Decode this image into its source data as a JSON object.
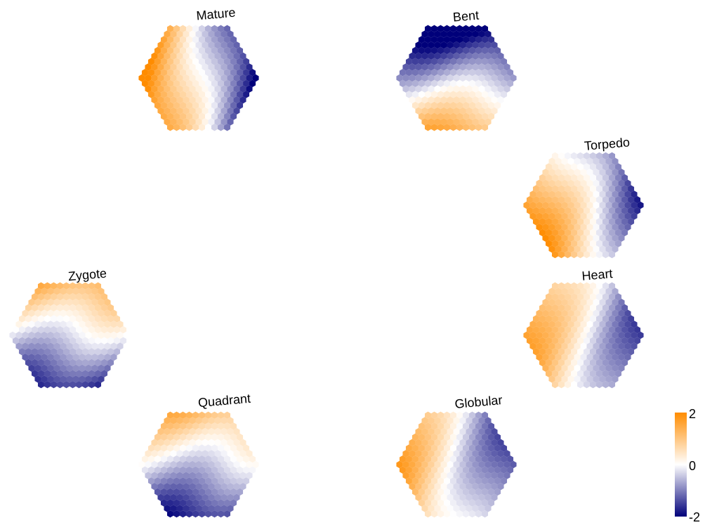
{
  "chart_data": {
    "type": "heatmap",
    "description_free": true,
    "color_scale": {
      "min": -2,
      "mid": 0,
      "max": 2,
      "ticks": [
        "2",
        "0",
        "-2"
      ],
      "colors": {
        "low": "#00007a",
        "mid": "#ffffff",
        "high": "#ff8c00"
      }
    },
    "panels": [
      {
        "name": "Mature",
        "pattern": [
          {
            "angle": 180,
            "strength": 1.6,
            "offset": 0.05
          }
        ]
      },
      {
        "name": "Bent",
        "pattern": [
          {
            "angle": 90,
            "strength": 1.4,
            "offset": -0.25
          }
        ]
      },
      {
        "name": "Torpedo",
        "pattern": [
          {
            "angle": 160,
            "strength": 1.2,
            "offset": 0.1
          }
        ]
      },
      {
        "name": "Heart",
        "pattern": [
          {
            "angle": 180,
            "strength": 1.0,
            "offset": 0.05
          }
        ]
      },
      {
        "name": "Globular",
        "pattern": [
          {
            "angle": 175,
            "strength": 1.0,
            "offset": 0.0
          }
        ]
      },
      {
        "name": "Quadrant",
        "pattern": [
          {
            "angle": -90,
            "strength": 1.1,
            "offset": -0.15
          }
        ]
      },
      {
        "name": "Zygote",
        "pattern": [
          {
            "angle": -90,
            "strength": 1.2,
            "offset": -0.1
          }
        ]
      }
    ]
  }
}
